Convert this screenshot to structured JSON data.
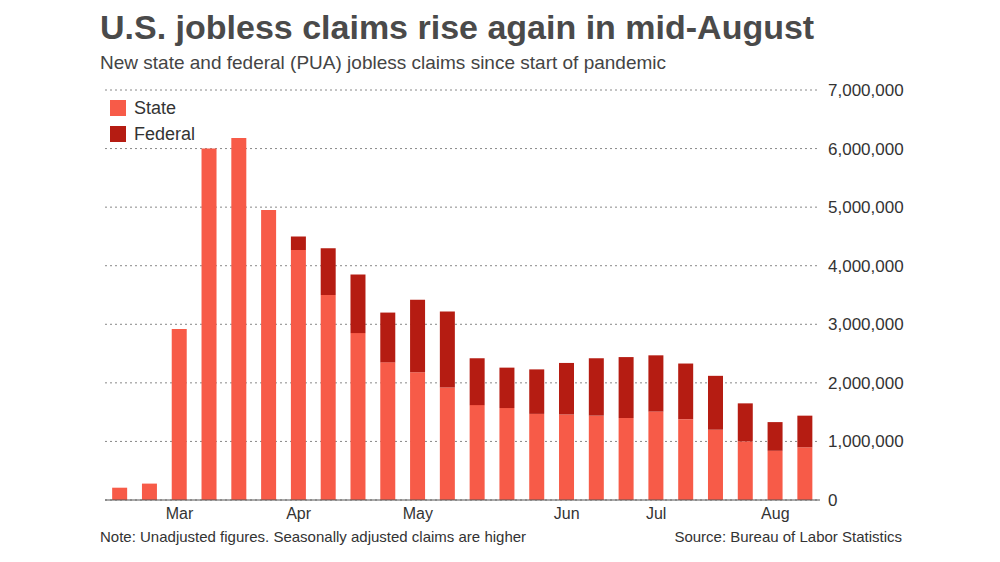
{
  "chart_data": {
    "type": "bar",
    "title": "U.S. jobless claims rise again in mid-August",
    "subtitle": "New state and federal (PUA) jobless claims since start of pandemic",
    "annotations": [
      "Note: Unadjusted figures. Seasonally adjusted claims are higher",
      "Source: Bureau of Labor Statistics"
    ],
    "categories": [
      null,
      null,
      "Mar",
      null,
      null,
      null,
      "Apr",
      null,
      null,
      null,
      "May",
      null,
      null,
      null,
      null,
      "Jun",
      null,
      null,
      "Jul",
      null,
      null,
      null,
      "Aug",
      null
    ],
    "series": [
      {
        "name": "State",
        "color": "#f75b48",
        "values": [
          210000,
          280000,
          2920000,
          6000000,
          6180000,
          4950000,
          4270000,
          3500000,
          2850000,
          2350000,
          2180000,
          1920000,
          1620000,
          1570000,
          1470000,
          1460000,
          1440000,
          1400000,
          1510000,
          1380000,
          1200000,
          1000000,
          840000,
          900000
        ]
      },
      {
        "name": "Federal",
        "color": "#b51c12",
        "values": [
          0,
          0,
          0,
          0,
          0,
          0,
          230000,
          800000,
          1000000,
          850000,
          1240000,
          1300000,
          800000,
          690000,
          760000,
          880000,
          980000,
          1040000,
          960000,
          950000,
          920000,
          650000,
          490000,
          540000
        ]
      }
    ],
    "stacked": true,
    "ylim": [
      0,
      7000000
    ],
    "yticks": [
      0,
      {
        "value": 1000000,
        "label": "1,000,000"
      },
      {
        "value": 2000000,
        "label": "2,000,000"
      },
      {
        "value": 3000000,
        "label": "3,000,000"
      },
      {
        "value": 4000000,
        "label": "4,000,000"
      },
      {
        "value": 5000000,
        "label": "5,000,000"
      },
      {
        "value": 6000000,
        "label": "6,000,000"
      },
      {
        "value": 7000000,
        "label": "7,000,000"
      }
    ],
    "grid": true,
    "legend": "upper left"
  }
}
